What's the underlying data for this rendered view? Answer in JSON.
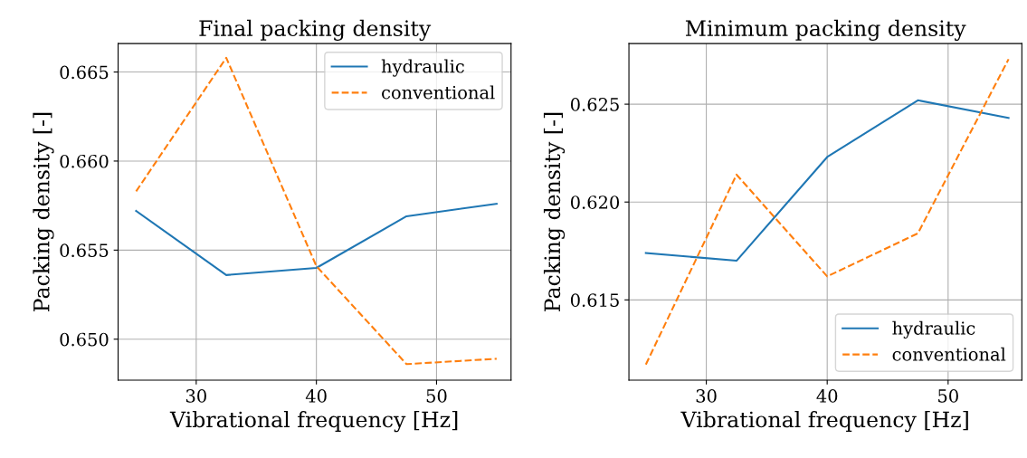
{
  "chart_data": [
    {
      "type": "line",
      "title": "Final packing density",
      "xlabel": "Vibrational frequency [Hz]",
      "ylabel": "Packing density [-]",
      "x": [
        25,
        32.5,
        40,
        47.5,
        55
      ],
      "series": [
        {
          "name": "hydraulic",
          "color": "#1f77b4",
          "line_style": "solid",
          "values": [
            0.6572,
            0.6536,
            0.654,
            0.6569,
            0.6576
          ]
        },
        {
          "name": "conventional",
          "color": "#ff7f0e",
          "line_style": "dashed",
          "values": [
            0.6583,
            0.6658,
            0.6541,
            0.6486,
            0.6489
          ]
        }
      ],
      "xlim": [
        23.5,
        56.2
      ],
      "ylim": [
        0.6477,
        0.6666
      ],
      "xticks": [
        30,
        40,
        50
      ],
      "yticks": [
        {
          "value": 0.65,
          "label": "0.650"
        },
        {
          "value": 0.655,
          "label": "0.655"
        },
        {
          "value": 0.66,
          "label": "0.660"
        },
        {
          "value": 0.665,
          "label": "0.665"
        }
      ],
      "grid": true,
      "legend": "top right",
      "marker": "none"
    },
    {
      "type": "line",
      "title": "Minimum packing density",
      "xlabel": "Vibrational frequency [Hz]",
      "ylabel": "Packing density [-]",
      "x": [
        25,
        32.5,
        40,
        47.5,
        55
      ],
      "series": [
        {
          "name": "hydraulic",
          "color": "#1f77b4",
          "line_style": "solid",
          "values": [
            0.6174,
            0.617,
            0.6223,
            0.6252,
            0.6243
          ]
        },
        {
          "name": "conventional",
          "color": "#ff7f0e",
          "line_style": "dashed",
          "values": [
            0.6117,
            0.6214,
            0.6162,
            0.6184,
            0.6273
          ]
        }
      ],
      "xlim": [
        23.6,
        56.1
      ],
      "ylim": [
        0.6109,
        0.6281
      ],
      "xticks": [
        30,
        40,
        50
      ],
      "yticks": [
        {
          "value": 0.615,
          "label": "0.615"
        },
        {
          "value": 0.62,
          "label": "0.620"
        },
        {
          "value": 0.625,
          "label": "0.625"
        }
      ],
      "grid": true,
      "legend": "bottom right",
      "marker": "none"
    }
  ]
}
